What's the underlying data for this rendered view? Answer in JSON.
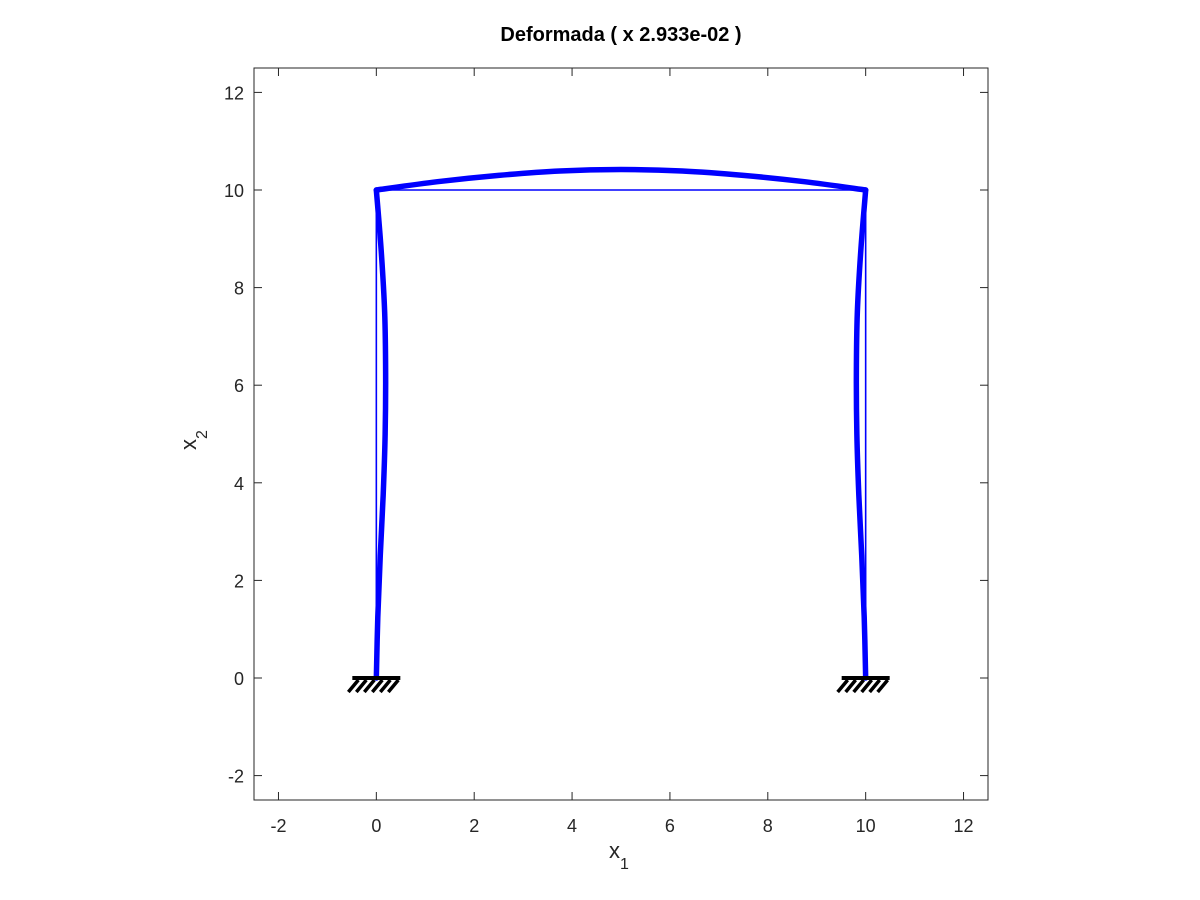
{
  "chart_data": {
    "type": "line",
    "title": "Deformada ( x 2.933e-02 )",
    "xlabel": {
      "base": "x",
      "sub": "1"
    },
    "ylabel": {
      "base": "x",
      "sub": "2"
    },
    "xlim": [
      -2.5,
      12.5
    ],
    "ylim": [
      -2.5,
      12.5
    ],
    "xticks": [
      -2,
      0,
      2,
      4,
      6,
      8,
      10,
      12
    ],
    "yticks": [
      -2,
      0,
      2,
      4,
      6,
      8,
      10,
      12
    ],
    "xtick_labels": [
      "-2",
      "0",
      "2",
      "4",
      "6",
      "8",
      "10",
      "12"
    ],
    "ytick_labels": [
      "-2",
      "0",
      "2",
      "4",
      "6",
      "8",
      "10",
      "12"
    ],
    "grid": false,
    "colors": {
      "structure": "#0000ff",
      "support": "#000000",
      "axes": "#262626"
    },
    "series": [
      {
        "name": "undeformed-left-column",
        "style": "thin",
        "x": [
          0,
          0
        ],
        "y": [
          0,
          10
        ]
      },
      {
        "name": "undeformed-right-column",
        "style": "thin",
        "x": [
          10,
          10
        ],
        "y": [
          0,
          10
        ]
      },
      {
        "name": "undeformed-beam",
        "style": "thin",
        "x": [
          0,
          10
        ],
        "y": [
          10,
          10
        ]
      },
      {
        "name": "deformed-left-column",
        "style": "thick",
        "x": [
          0,
          0.03,
          0.08,
          0.14,
          0.18,
          0.19,
          0.17,
          0.1,
          0
        ],
        "y": [
          0,
          1.25,
          2.5,
          3.75,
          5,
          6.25,
          7.5,
          8.75,
          10
        ]
      },
      {
        "name": "deformed-beam",
        "style": "thick",
        "x": [
          0,
          1.25,
          2.5,
          3.75,
          5,
          6.25,
          7.5,
          8.75,
          10
        ],
        "y": [
          10,
          10.17,
          10.3,
          10.39,
          10.42,
          10.39,
          10.3,
          10.17,
          10
        ]
      },
      {
        "name": "deformed-right-column",
        "style": "thick",
        "x": [
          10,
          9.97,
          9.92,
          9.86,
          9.82,
          9.81,
          9.83,
          9.9,
          10
        ],
        "y": [
          0,
          1.25,
          2.5,
          3.75,
          5,
          6.25,
          7.5,
          8.75,
          10
        ]
      }
    ],
    "supports": [
      {
        "name": "left",
        "x": 0,
        "y": 0
      },
      {
        "name": "right",
        "x": 10,
        "y": 0
      }
    ]
  }
}
